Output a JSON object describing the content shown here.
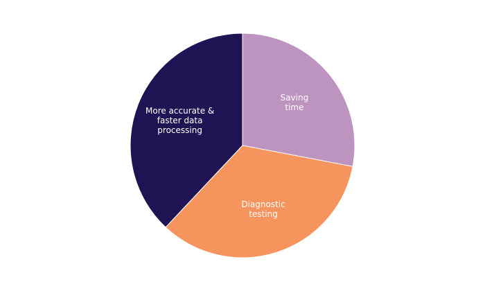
{
  "chart_data": {
    "type": "pie",
    "categories": [
      "Saving\ntime",
      "Diagnostic\ntesting",
      "More accurate &\nfaster data\nprocessing"
    ],
    "values": [
      28,
      34,
      38
    ],
    "colors": [
      "#bd93c0",
      "#f5945c",
      "#1f1353"
    ]
  }
}
